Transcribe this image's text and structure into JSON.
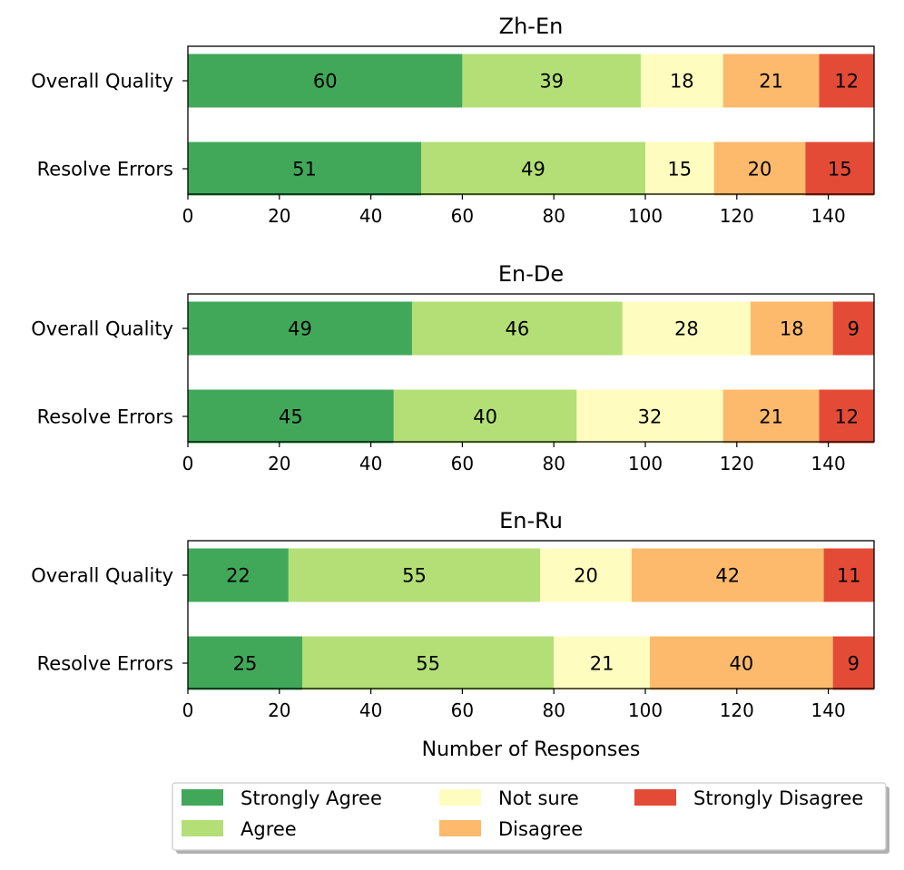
{
  "chart_data": {
    "type": "bar",
    "orientation": "horizontal",
    "stacked": true,
    "xlabel": "Number of Responses",
    "xlim": [
      0,
      150
    ],
    "xticks": [
      0,
      20,
      40,
      60,
      80,
      100,
      120,
      140
    ],
    "grid": false,
    "legend_position": "bottom-right",
    "series_info": [
      {
        "name": "Strongly Agree",
        "color": "#41a85a"
      },
      {
        "name": "Agree",
        "color": "#b3df76"
      },
      {
        "name": "Not sure",
        "color": "#fefdbf"
      },
      {
        "name": "Disagree",
        "color": "#fdba6c"
      },
      {
        "name": "Strongly Disagree",
        "color": "#e34b36"
      }
    ],
    "panels": [
      {
        "title": "Zh-En",
        "categories": [
          "Overall Quality",
          "Resolve Errors"
        ],
        "series": [
          {
            "name": "Strongly Agree",
            "values": [
              60,
              51
            ]
          },
          {
            "name": "Agree",
            "values": [
              39,
              49
            ]
          },
          {
            "name": "Not sure",
            "values": [
              18,
              15
            ]
          },
          {
            "name": "Disagree",
            "values": [
              21,
              20
            ]
          },
          {
            "name": "Strongly Disagree",
            "values": [
              12,
              15
            ]
          }
        ]
      },
      {
        "title": "En-De",
        "categories": [
          "Overall Quality",
          "Resolve Errors"
        ],
        "series": [
          {
            "name": "Strongly Agree",
            "values": [
              49,
              45
            ]
          },
          {
            "name": "Agree",
            "values": [
              46,
              40
            ]
          },
          {
            "name": "Not sure",
            "values": [
              28,
              32
            ]
          },
          {
            "name": "Disagree",
            "values": [
              18,
              21
            ]
          },
          {
            "name": "Strongly Disagree",
            "values": [
              9,
              12
            ]
          }
        ]
      },
      {
        "title": "En-Ru",
        "categories": [
          "Overall Quality",
          "Resolve Errors"
        ],
        "series": [
          {
            "name": "Strongly Agree",
            "values": [
              22,
              25
            ]
          },
          {
            "name": "Agree",
            "values": [
              55,
              55
            ]
          },
          {
            "name": "Not sure",
            "values": [
              20,
              21
            ]
          },
          {
            "name": "Disagree",
            "values": [
              42,
              40
            ]
          },
          {
            "name": "Strongly Disagree",
            "values": [
              11,
              9
            ]
          }
        ]
      }
    ]
  }
}
